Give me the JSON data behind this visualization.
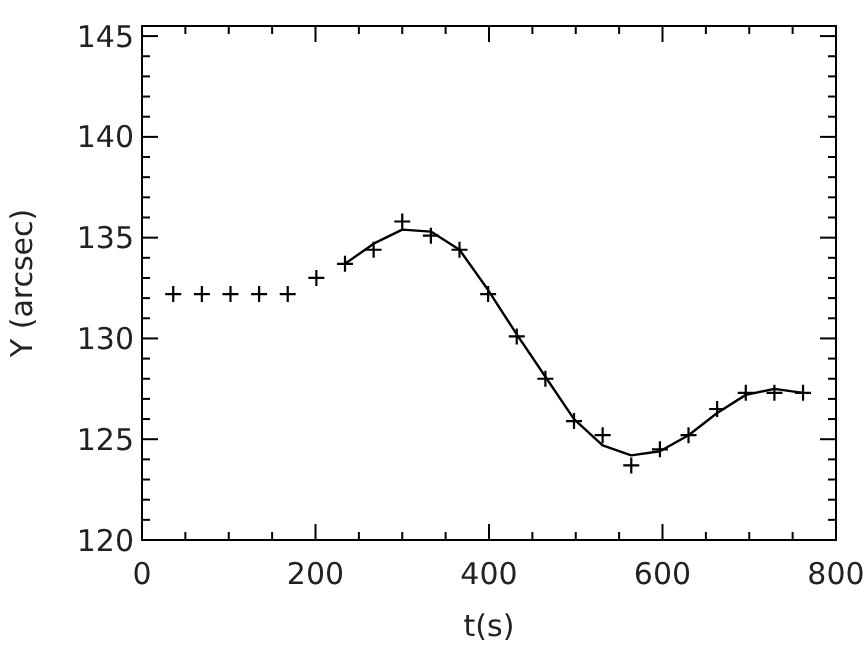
{
  "chart_data": {
    "type": "scatter",
    "xlabel": "t(s)",
    "ylabel": "Y (arcsec)",
    "xlim": [
      0,
      800
    ],
    "xticks": [
      0,
      200,
      400,
      600,
      800
    ],
    "ylim": [
      120,
      145.5
    ],
    "yticks": [
      120,
      125,
      130,
      135,
      140,
      145
    ],
    "grid": false,
    "series": [
      {
        "marker": "cross",
        "color": "#000000",
        "x": [
          36,
          69,
          102,
          135,
          168,
          201,
          234,
          267,
          300,
          333,
          366,
          399,
          432,
          465,
          498,
          531,
          564,
          597,
          630,
          663,
          696,
          729,
          762
        ],
        "values": [
          132.2,
          132.2,
          132.2,
          132.2,
          132.2,
          133.0,
          133.7,
          134.4,
          135.8,
          135.1,
          134.4,
          132.2,
          130.1,
          128.0,
          125.9,
          125.2,
          123.7,
          124.5,
          125.2,
          126.5,
          127.3,
          127.3,
          127.3
        ]
      },
      {
        "type": "line",
        "marker": "none",
        "line_style": "solid",
        "color": "#000000",
        "x": [
          234,
          267,
          300,
          333,
          366,
          399,
          432,
          465,
          498,
          531,
          564,
          597,
          630,
          663,
          696,
          729,
          762
        ],
        "values": [
          133.7,
          134.7,
          135.4,
          135.3,
          134.4,
          132.4,
          130.2,
          128.1,
          126.0,
          124.7,
          124.2,
          124.4,
          125.2,
          126.3,
          127.2,
          127.5,
          127.3
        ]
      }
    ]
  }
}
